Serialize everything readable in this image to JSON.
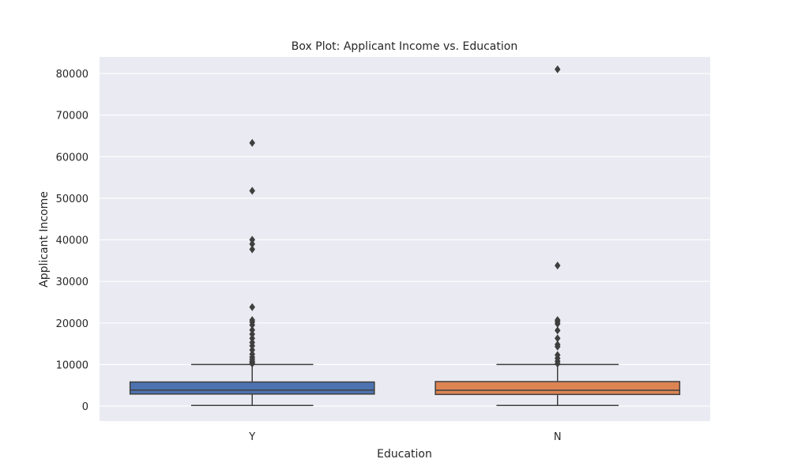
{
  "chart_data": {
    "type": "box",
    "title": "Box Plot: Applicant Income vs. Education",
    "xlabel": "Education",
    "ylabel": "Applicant Income",
    "ylim": [
      -3600,
      84000
    ],
    "yticks": [
      0,
      10000,
      20000,
      30000,
      40000,
      50000,
      60000,
      70000,
      80000
    ],
    "yticklabels": [
      "0",
      "10000",
      "20000",
      "30000",
      "40000",
      "50000",
      "60000",
      "70000",
      "80000"
    ],
    "grid": true,
    "background": "#eaeaf2",
    "categories": [
      "Y",
      "N"
    ],
    "boxes": [
      {
        "category": "Y",
        "color": "#4c72b0",
        "whisker_low": 150,
        "q1": 2900,
        "median": 3850,
        "q3": 5800,
        "whisker_high": 10000,
        "outliers": [
          10200,
          10500,
          10800,
          11300,
          11800,
          12500,
          13500,
          14500,
          15300,
          16300,
          17300,
          18300,
          19500,
          20200,
          20700,
          23800,
          37700,
          39000,
          40000,
          51800,
          63300
        ]
      },
      {
        "category": "N",
        "color": "#dd8452",
        "whisker_low": 150,
        "q1": 2800,
        "median": 3800,
        "q3": 5900,
        "whisker_high": 10000,
        "outliers": [
          10200,
          10800,
          11500,
          12300,
          14300,
          14800,
          16300,
          18200,
          19800,
          20300,
          20700,
          33800,
          81000
        ]
      }
    ]
  }
}
